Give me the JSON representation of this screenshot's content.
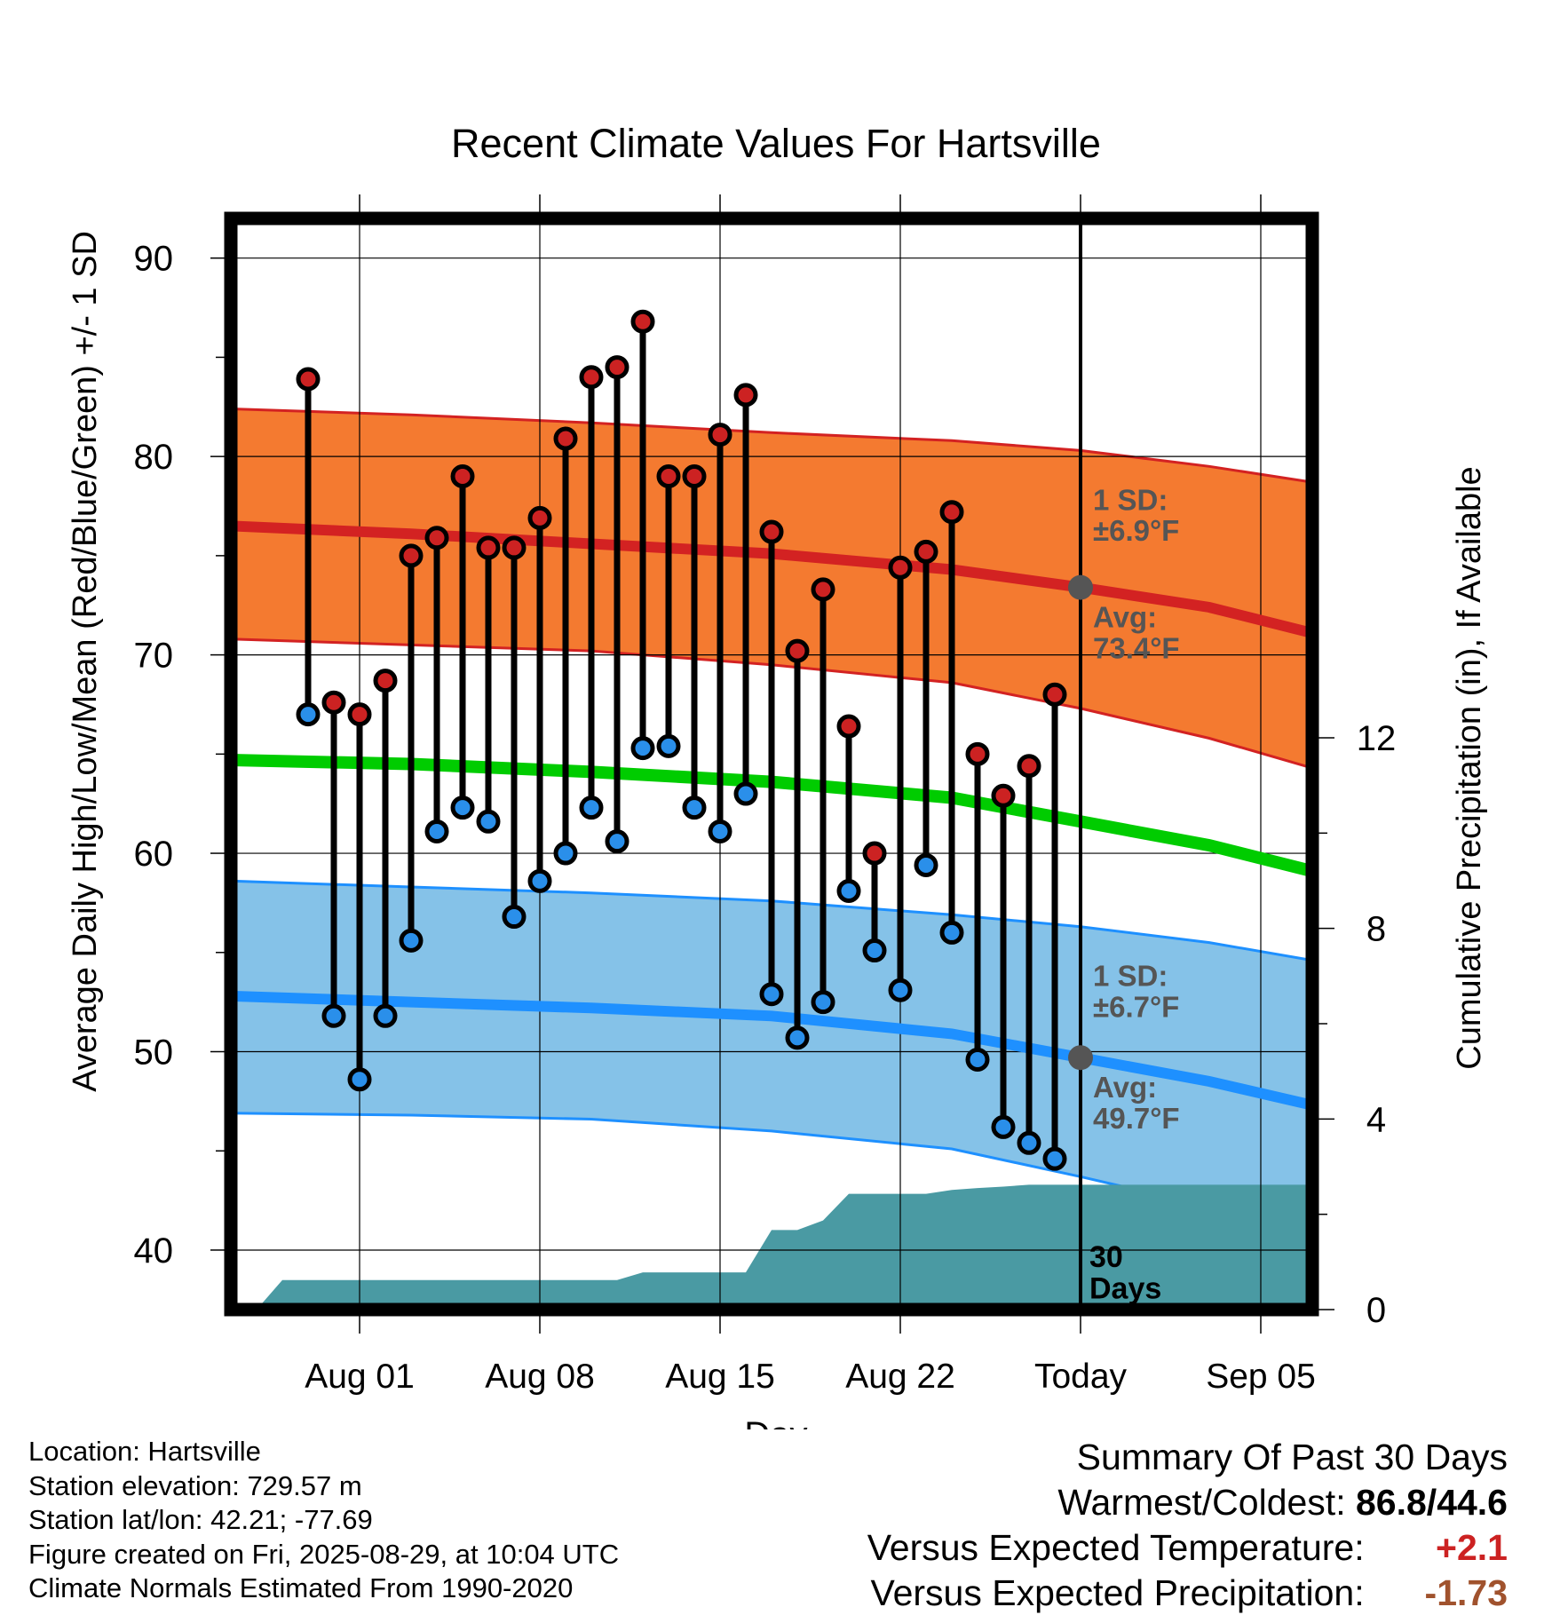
{
  "chart_data": {
    "type": "line",
    "title": "Recent Climate Values For Hartsville",
    "xlabel": "Day",
    "ylabel": "Average Daily High/Low/Mean (Red/Blue/Green) +/- 1 SD",
    "y2label": "Cumulative Precipitation (in), If Available",
    "x_ticks": [
      "Aug 01",
      "Aug 08",
      "Aug 15",
      "Aug 22",
      "Today",
      "Sep 05"
    ],
    "y_ticks": [
      40,
      50,
      60,
      70,
      80,
      90
    ],
    "y2_ticks": [
      0,
      4,
      8,
      12
    ],
    "xlim": [
      "2025-07-27",
      "2025-09-07"
    ],
    "ylim": [
      37,
      92
    ],
    "y2lim": [
      0,
      22.9
    ],
    "today": "2025-08-29",
    "days": [
      "2025-07-30",
      "2025-07-31",
      "2025-08-01",
      "2025-08-02",
      "2025-08-03",
      "2025-08-04",
      "2025-08-05",
      "2025-08-06",
      "2025-08-07",
      "2025-08-08",
      "2025-08-09",
      "2025-08-10",
      "2025-08-11",
      "2025-08-12",
      "2025-08-13",
      "2025-08-14",
      "2025-08-15",
      "2025-08-16",
      "2025-08-17",
      "2025-08-18",
      "2025-08-19",
      "2025-08-20",
      "2025-08-21",
      "2025-08-22",
      "2025-08-23",
      "2025-08-24",
      "2025-08-25",
      "2025-08-26",
      "2025-08-27",
      "2025-08-28"
    ],
    "observed_high": [
      83.9,
      67.6,
      67.0,
      68.7,
      75.0,
      75.9,
      79.0,
      75.4,
      75.4,
      76.9,
      80.9,
      84.0,
      84.5,
      86.8,
      79.0,
      79.0,
      81.1,
      83.1,
      76.2,
      70.2,
      73.3,
      66.4,
      60.0,
      74.4,
      75.2,
      77.2,
      65.0,
      62.9,
      64.4,
      68.0
    ],
    "observed_low": [
      67.0,
      51.8,
      48.6,
      51.8,
      55.6,
      61.1,
      62.3,
      61.6,
      56.8,
      58.6,
      60.0,
      62.3,
      60.6,
      65.3,
      65.4,
      62.3,
      61.1,
      63.0,
      52.9,
      50.7,
      52.5,
      58.1,
      55.1,
      53.1,
      59.4,
      56.0,
      49.6,
      46.2,
      45.4,
      44.6
    ],
    "normal_x": [
      "2025-07-27",
      "2025-08-03",
      "2025-08-10",
      "2025-08-17",
      "2025-08-24",
      "2025-08-29",
      "2025-09-03",
      "2025-09-07"
    ],
    "normal_high_mean": [
      76.5,
      76.1,
      75.6,
      75.1,
      74.3,
      73.4,
      72.4,
      71.1
    ],
    "normal_high_upper": [
      82.4,
      82.1,
      81.7,
      81.2,
      80.8,
      80.3,
      79.5,
      78.7
    ],
    "normal_high_lower": [
      70.8,
      70.5,
      70.2,
      69.5,
      68.6,
      67.3,
      65.8,
      64.3
    ],
    "normal_mean": [
      64.7,
      64.5,
      64.1,
      63.6,
      62.8,
      61.6,
      60.4,
      59.1
    ],
    "normal_low_mean": [
      52.8,
      52.5,
      52.2,
      51.8,
      50.9,
      49.7,
      48.5,
      47.3
    ],
    "normal_low_upper": [
      58.6,
      58.3,
      58.0,
      57.6,
      56.9,
      56.3,
      55.5,
      54.6
    ],
    "normal_low_lower": [
      46.9,
      46.8,
      46.6,
      46.0,
      45.1,
      43.7,
      42.2,
      40.6
    ],
    "precip_x": [
      "2025-07-28",
      "2025-07-29",
      "2025-08-11",
      "2025-08-12",
      "2025-08-13",
      "2025-08-15",
      "2025-08-16",
      "2025-08-17",
      "2025-08-18",
      "2025-08-19",
      "2025-08-20",
      "2025-08-21",
      "2025-08-23",
      "2025-08-24",
      "2025-08-25",
      "2025-08-26",
      "2025-08-27",
      "2025-08-28",
      "2025-09-07"
    ],
    "cumulative_precip": [
      0.0,
      0.62,
      0.62,
      0.78,
      0.78,
      0.78,
      0.78,
      1.67,
      1.67,
      1.87,
      2.43,
      2.43,
      2.43,
      2.51,
      2.55,
      2.58,
      2.62,
      2.62,
      2.62
    ],
    "precip_period_label": [
      "30",
      "Days"
    ],
    "high_sd_label": [
      "1 SD:",
      "±6.9°F"
    ],
    "high_avg_label": [
      "Avg:",
      "73.4°F"
    ],
    "low_sd_label": [
      "1 SD:",
      "±6.7°F"
    ],
    "low_avg_label": [
      "Avg:",
      "49.7°F"
    ],
    "grid": true,
    "colors": {
      "high_band": "#f47a30",
      "high_line": "#d32222",
      "mean_line": "#00cc00",
      "low_band": "#85c2e8",
      "low_line": "#1e90ff",
      "precip": "#4a9aa3",
      "high_dot": "#cc2222",
      "low_dot": "#2a8fea",
      "today_dot": "#555555",
      "label_text": "#555555"
    }
  },
  "info": {
    "location": "Location: Hartsville",
    "elevation": "Station elevation: 729.57 m",
    "latlon": "Station lat/lon: 42.21; -77.69",
    "created": "Figure created on Fri, 2025-08-29, at 10:04 UTC",
    "normals": "Climate Normals Estimated From 1990-2020"
  },
  "summary": {
    "heading": "Summary Of Past 30 Days",
    "warmest_label": "Warmest/Coldest:",
    "warmest_value": "86.8/44.6",
    "temp_label": "Versus Expected Temperature:",
    "temp_value": "+2.1",
    "temp_color": "#cc2222",
    "precip_label": "Versus Expected Precipitation:",
    "precip_value": "-1.73",
    "precip_color": "#a0522d"
  }
}
